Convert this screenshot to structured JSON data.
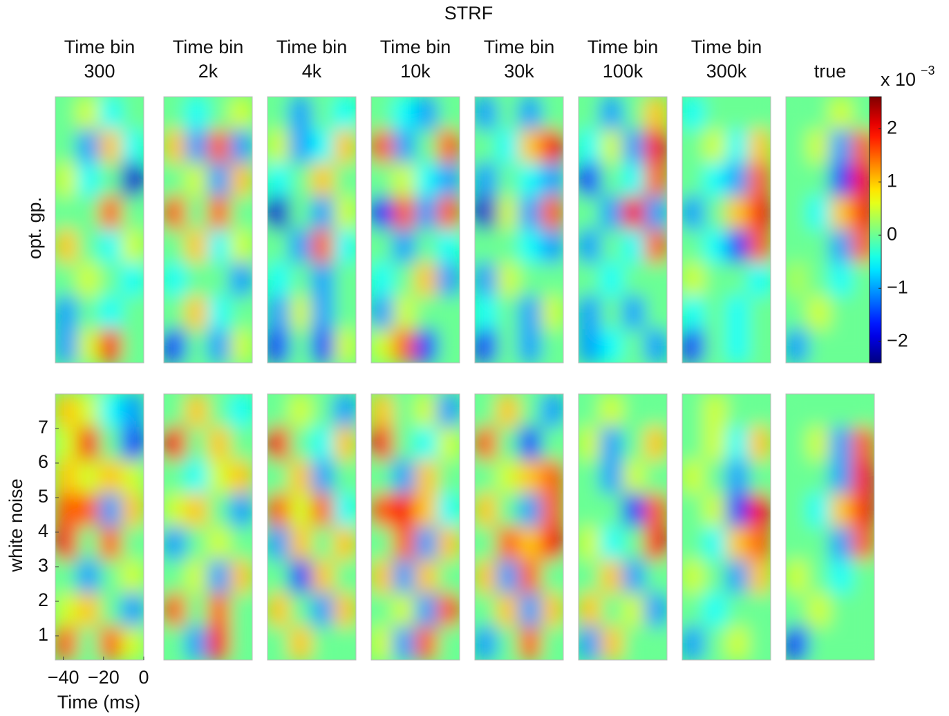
{
  "chart_data": {
    "type": "heatmap",
    "title": "STRF",
    "column_titles": [
      [
        "Time bin",
        "300"
      ],
      [
        "Time bin",
        "2k"
      ],
      [
        "Time bin",
        "4k"
      ],
      [
        "Time bin",
        "10k"
      ],
      [
        "Time bin",
        "30k"
      ],
      [
        "Time bin",
        "100k"
      ],
      [
        "Time bin",
        "300k"
      ],
      [
        "true"
      ]
    ],
    "colormap": "jet",
    "clim": [
      -2.4,
      2.6
    ],
    "colorbar_ticks": [
      {
        "value": -2,
        "label": "−2"
      },
      {
        "value": -1,
        "label": "−1"
      },
      0,
      1,
      2
    ],
    "colorbar_multiplier": "x 10",
    "colorbar_exponent": "−3",
    "y_label": "white noise",
    "ylim": [
      0.3,
      8
    ],
    "yticks": [
      1,
      2,
      3,
      4,
      5,
      6,
      7
    ],
    "x_label": "Time (ms)",
    "xlim": [
      -44,
      0
    ],
    "xticks": [
      {
        "value": -40,
        "label": "−40"
      },
      {
        "value": -20,
        "label": "−20"
      },
      0
    ],
    "rows": [
      {
        "name": "opt. gp.",
        "panels": [
          [
            [
              0,
              0.5,
              -0.5,
              0
            ],
            [
              0,
              -1,
              1,
              -0.5
            ],
            [
              0.5,
              -0.5,
              0,
              -2
            ],
            [
              0,
              0,
              1.5,
              0
            ],
            [
              1,
              0,
              -0.5,
              0.5
            ],
            [
              0,
              0.5,
              0,
              -0.5
            ],
            [
              -1,
              0,
              -0.5,
              0
            ],
            [
              -1,
              0.5,
              2,
              0
            ]
          ],
          [
            [
              0,
              -0.5,
              0,
              0.5
            ],
            [
              1,
              -1,
              1.5,
              -1
            ],
            [
              0,
              0.5,
              -1,
              1
            ],
            [
              1.5,
              0,
              1.5,
              0
            ],
            [
              0,
              1,
              -0.5,
              0.5
            ],
            [
              -0.5,
              0,
              0,
              -1
            ],
            [
              0,
              1,
              -0.5,
              0
            ],
            [
              -1.5,
              0,
              -1,
              0.5
            ]
          ],
          [
            [
              0,
              -1,
              0,
              -0.5
            ],
            [
              0.5,
              -1,
              -0.5,
              1
            ],
            [
              -0.5,
              0,
              1,
              0
            ],
            [
              -2,
              0,
              -1,
              0.5
            ],
            [
              0,
              -1,
              1.5,
              -0.5
            ],
            [
              -0.5,
              0,
              -1,
              0
            ],
            [
              -1,
              0.5,
              -1,
              0
            ],
            [
              -1.5,
              0,
              -1.5,
              0.5
            ]
          ],
          [
            [
              0,
              -0.5,
              -1,
              0
            ],
            [
              1.5,
              -1,
              0,
              1.5
            ],
            [
              0,
              0.5,
              -0.5,
              -1
            ],
            [
              -1.5,
              1.5,
              -1,
              1.5
            ],
            [
              0,
              -1,
              0,
              -0.5
            ],
            [
              -0.5,
              0,
              1,
              -1
            ],
            [
              -1,
              0.5,
              0,
              0
            ],
            [
              0.5,
              1.5,
              -1.5,
              0
            ]
          ],
          [
            [
              -1,
              0,
              -1,
              0
            ],
            [
              0,
              -0.5,
              1,
              2
            ],
            [
              -1,
              0,
              -0.5,
              -1
            ],
            [
              -2,
              0.5,
              -1,
              1.5
            ],
            [
              0,
              0,
              -0.5,
              -1
            ],
            [
              -1,
              0.5,
              0,
              0
            ],
            [
              -0.5,
              0,
              -1,
              0.5
            ],
            [
              -1.5,
              0,
              -1,
              0
            ]
          ],
          [
            [
              0,
              -1,
              0,
              1
            ],
            [
              -0.5,
              0.5,
              -1,
              2
            ],
            [
              -1.5,
              0,
              -0.5,
              1.5
            ],
            [
              0,
              -1,
              2,
              -1
            ],
            [
              -1,
              0,
              -0.5,
              1.5
            ],
            [
              0,
              -0.5,
              0,
              0
            ],
            [
              -1,
              0,
              -1,
              0
            ],
            [
              -1,
              -0.5,
              0,
              -1
            ]
          ],
          [
            [
              -0.5,
              0,
              0,
              0
            ],
            [
              0,
              0.5,
              -0.5,
              1
            ],
            [
              0,
              -0.5,
              -1,
              1.5
            ],
            [
              -1,
              0,
              1,
              2
            ],
            [
              0,
              -0.5,
              -1.5,
              1.5
            ],
            [
              0.5,
              0,
              0,
              -0.5
            ],
            [
              -0.5,
              0,
              -0.5,
              0
            ],
            [
              -1.5,
              0,
              -0.5,
              0
            ]
          ],
          [
            [
              0,
              0,
              0.5,
              0
            ],
            [
              0,
              0.5,
              -1,
              1.5
            ],
            [
              0,
              0,
              -1.5,
              2
            ],
            [
              0,
              -0.5,
              1,
              2
            ],
            [
              0,
              0,
              -1,
              1.5
            ],
            [
              0.3,
              0,
              -0.5,
              0
            ],
            [
              0,
              0.5,
              0,
              0
            ],
            [
              -1,
              0,
              0,
              0
            ]
          ]
        ]
      },
      {
        "name": "white noise",
        "panels": [
          [
            [
              1,
              0.5,
              -0.5,
              -1
            ],
            [
              0.5,
              2,
              0,
              -1.5
            ],
            [
              1,
              0.5,
              1,
              0.5
            ],
            [
              1.5,
              1.5,
              -1,
              1
            ],
            [
              2,
              0,
              1.5,
              0
            ],
            [
              0,
              -1,
              0,
              0.5
            ],
            [
              0.5,
              1,
              0,
              -1
            ],
            [
              1.5,
              0,
              1.5,
              0.5
            ]
          ],
          [
            [
              0,
              1,
              0,
              -0.5
            ],
            [
              2,
              0,
              1,
              0
            ],
            [
              0,
              -0.5,
              0.5,
              1
            ],
            [
              0.5,
              1,
              0,
              -1
            ],
            [
              -1,
              0,
              0.5,
              0
            ],
            [
              0,
              0.5,
              -1,
              1
            ],
            [
              1.5,
              0,
              1.5,
              0
            ],
            [
              0,
              -1,
              2,
              0
            ]
          ],
          [
            [
              0,
              0.5,
              0,
              -1
            ],
            [
              2,
              0,
              -0.5,
              1
            ],
            [
              0,
              1,
              -1,
              0
            ],
            [
              1.5,
              0.5,
              1.5,
              -0.5
            ],
            [
              -1,
              1,
              0,
              1
            ],
            [
              0,
              -1.5,
              1,
              0
            ],
            [
              1,
              0,
              -1,
              1
            ],
            [
              0,
              1,
              0,
              0
            ]
          ],
          [
            [
              1,
              0,
              0.5,
              -1
            ],
            [
              2,
              0,
              -0.5,
              0.5
            ],
            [
              0,
              -1,
              1,
              0
            ],
            [
              1.5,
              2,
              1,
              -0.5
            ],
            [
              0,
              1.5,
              -1,
              1
            ],
            [
              1,
              -1,
              1,
              0
            ],
            [
              0,
              0.5,
              -1,
              1.5
            ],
            [
              0.5,
              -1,
              1.5,
              0
            ]
          ],
          [
            [
              0,
              1,
              0,
              -1
            ],
            [
              1.5,
              0,
              -1.5,
              0
            ],
            [
              0,
              0.5,
              1,
              1.5
            ],
            [
              1,
              0,
              -1,
              1.5
            ],
            [
              0,
              1.5,
              1,
              2
            ],
            [
              1,
              -1,
              1.5,
              0
            ],
            [
              0,
              1,
              -1,
              1
            ],
            [
              -1,
              0,
              1.5,
              0
            ]
          ],
          [
            [
              0,
              0.5,
              0,
              0
            ],
            [
              0.5,
              -1,
              0,
              1
            ],
            [
              0,
              -1,
              0.5,
              0
            ],
            [
              0,
              0,
              -1.5,
              1.5
            ],
            [
              0.5,
              -0.5,
              0,
              2
            ],
            [
              0,
              1,
              -1,
              0
            ],
            [
              1,
              0,
              0.5,
              -1
            ],
            [
              -1,
              1,
              0,
              0
            ]
          ],
          [
            [
              0,
              0.5,
              0,
              0
            ],
            [
              0,
              0.5,
              -0.5,
              1
            ],
            [
              0.5,
              0,
              -1,
              0
            ],
            [
              0,
              0.5,
              -1.5,
              2
            ],
            [
              0,
              -0.5,
              1,
              1.5
            ],
            [
              0.5,
              0,
              -1,
              1
            ],
            [
              0,
              -0.5,
              0,
              0
            ],
            [
              -1,
              0,
              0.5,
              0
            ]
          ],
          [
            [
              0,
              0,
              0,
              0
            ],
            [
              0,
              0.5,
              -1,
              1.5
            ],
            [
              0,
              0,
              -1,
              2
            ],
            [
              0,
              -0.5,
              1,
              2
            ],
            [
              0,
              0,
              -1,
              1.5
            ],
            [
              0.5,
              0,
              -0.5,
              0
            ],
            [
              0,
              0.5,
              0,
              0
            ],
            [
              -1.5,
              0,
              0,
              0
            ]
          ]
        ]
      }
    ]
  }
}
